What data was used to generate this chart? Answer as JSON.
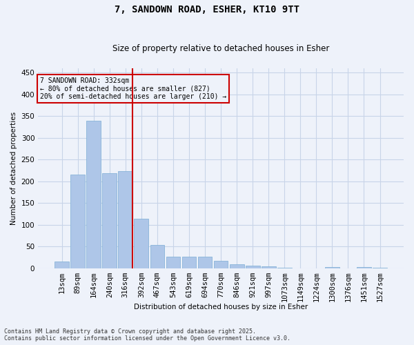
{
  "title_line1": "7, SANDOWN ROAD, ESHER, KT10 9TT",
  "title_line2": "Size of property relative to detached houses in Esher",
  "xlabel": "Distribution of detached houses by size in Esher",
  "ylabel": "Number of detached properties",
  "categories": [
    "13sqm",
    "89sqm",
    "164sqm",
    "240sqm",
    "316sqm",
    "392sqm",
    "467sqm",
    "543sqm",
    "619sqm",
    "694sqm",
    "770sqm",
    "846sqm",
    "921sqm",
    "997sqm",
    "1073sqm",
    "1149sqm",
    "1224sqm",
    "1300sqm",
    "1376sqm",
    "1451sqm",
    "1527sqm"
  ],
  "values": [
    15,
    216,
    339,
    218,
    223,
    113,
    53,
    27,
    26,
    26,
    17,
    9,
    5,
    4,
    1,
    0,
    0,
    3,
    0,
    2,
    1
  ],
  "bar_color": "#aec6e8",
  "bar_edge_color": "#7aadd4",
  "vline_index": 4,
  "vline_color": "#cc0000",
  "annotation_text": "7 SANDOWN ROAD: 332sqm\n← 80% of detached houses are smaller (827)\n20% of semi-detached houses are larger (210) →",
  "annotation_box_color": "#cc0000",
  "ylim": [
    0,
    460
  ],
  "yticks": [
    0,
    50,
    100,
    150,
    200,
    250,
    300,
    350,
    400,
    450
  ],
  "grid_color": "#c8d4e8",
  "background_color": "#eef2fa",
  "footer_line1": "Contains HM Land Registry data © Crown copyright and database right 2025.",
  "footer_line2": "Contains public sector information licensed under the Open Government Licence v3.0."
}
